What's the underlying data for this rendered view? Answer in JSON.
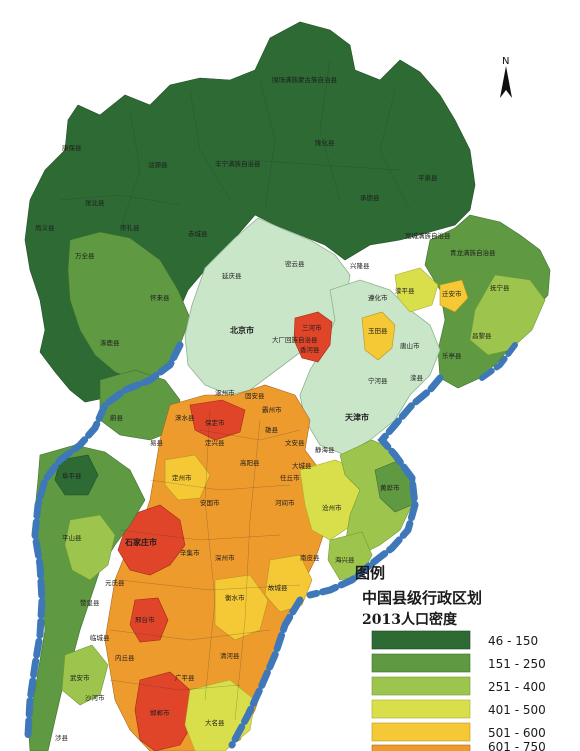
{
  "map": {
    "north_label": "N",
    "colors": {
      "class_46_150": "#2e6a34",
      "class_151_250": "#5f9a43",
      "class_251_400": "#9dc54e",
      "class_401_500": "#d9df4a",
      "class_501_600": "#f4c935",
      "class_601_750": "#ee9b2e",
      "class_751_plus": "#e0452a",
      "municipal": "#c9e6c9",
      "sea_coast": "#3f78b8"
    },
    "labels": {
      "weichang": "围场满族蒙古族自治县",
      "kangbao": "康保县",
      "gubei": "沽源县",
      "fengning": "丰宁满族自治县",
      "longhua": "隆化县",
      "pingquan": "平泉县",
      "chengde": "承德县",
      "shangyi": "尚义县",
      "zhangbei": "张北县",
      "chongli": "崇礼县",
      "chicheng": "赤城县",
      "kuancheng": "宽城满族自治县",
      "xinglong": "兴隆县",
      "qinglong": "青龙满族自治县",
      "huaian": "万全县",
      "huailai": "怀来县",
      "yanqing": "延庆县",
      "miyun": "密云县",
      "beijing": "北京市",
      "tianjin": "天津市",
      "tangshan": "唐山市",
      "qianan": "迁安市",
      "luanping": "滦平县",
      "zhuolu": "涿鹿县",
      "yu": "蔚县",
      "laishui": "涞水县",
      "funing": "抚宁县",
      "changli": "昌黎县",
      "leting": "乐亭县",
      "ninghe": "宁河县",
      "jinghai": "静海县",
      "baoding": "保定市",
      "xiong": "雄县",
      "renqiu": "任丘市",
      "hejian": "河间市",
      "cangzhou": "沧州市",
      "hengshui": "衡水市",
      "shijiazhuang": "石家庄市",
      "xingtai": "邢台市",
      "handan": "邯郸市",
      "dingzhou": "定州市",
      "fuping": "阜平县",
      "pingshan": "平山县",
      "shahe": "沙河市",
      "wuan": "武安市",
      "shexian": "涉县",
      "dacheng": "大城县",
      "huanghua": "黄骅市",
      "haixing": "海兴县",
      "nanpi": "南皮县",
      "gucheng": "故城县",
      "qinghe": "清河县",
      "guangping": "广平县",
      "daming": "大名县",
      "yuanshi": "元氏县",
      "zanhuang": "赞皇县",
      "lincheng": "临城县",
      "neiqiu": "内丘县",
      "xinji": "辛集市",
      "shenzhou": "深州市",
      "anguo": "安国市",
      "gaoyang": "高阳县",
      "wenan": "文安县",
      "bazhou": "霸州市",
      "gu_an": "固安县",
      "zhuozhou": "涿州市",
      "dingxing": "定兴县",
      "yi": "易县",
      "sanhe": "三河市",
      "xianghe": "香河县",
      "dachang": "大厂回族自治县",
      "yutian": "玉田县",
      "zunhua": "遵化市",
      "luanxian": "滦县"
    }
  },
  "legend": {
    "heading_main": "图例",
    "heading_title": "中国县级行政区划",
    "heading_subtitle": "2013人口密度",
    "items": [
      {
        "range": "46 - 150",
        "color": "#2e6a34"
      },
      {
        "range": "151 - 250",
        "color": "#5f9a43"
      },
      {
        "range": "251 - 400",
        "color": "#9dc54e"
      },
      {
        "range": "401 - 500",
        "color": "#d9df4a"
      },
      {
        "range": "501 - 600",
        "color": "#f4c935"
      },
      {
        "range": "601 - 750",
        "color": "#ee9b2e"
      }
    ]
  }
}
